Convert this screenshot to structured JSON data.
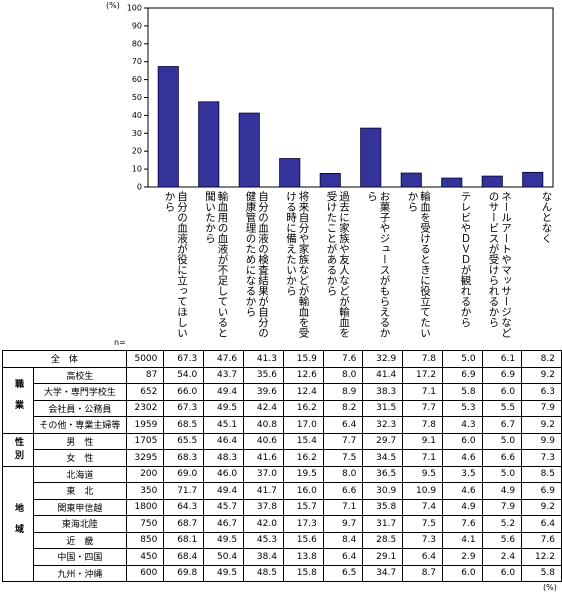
{
  "chart_data": {
    "type": "bar",
    "unit": "(%)",
    "color": "#333399",
    "categories": [
      "自分の血液が役に立ってほしいから",
      "輸血用の血液が不足していると聞いたから",
      "自分の血液の検査結果が自分の健康管理のためになるから",
      "将来自分や家族などが輸血を受ける時に備えたいから",
      "過去に家族や友人などが輸血を受けたことがあるから",
      "お菓子やジュースがもらえるから",
      "輸血を受けるときに役立てたいから",
      "テレビやＤＶＤが観れるから",
      "ネールアートやマッサージなどのサービスが受けられるから",
      "なんとなく"
    ],
    "values": [
      67.3,
      47.6,
      41.3,
      15.9,
      7.6,
      32.9,
      7.8,
      5.0,
      6.1,
      8.2
    ],
    "ylim": [
      0,
      100
    ],
    "yticks": [
      0,
      10,
      20,
      30,
      40,
      50,
      60,
      70,
      80,
      90,
      100
    ]
  },
  "table": {
    "n_label": "n=",
    "unit": "(%)",
    "total": [
      "全　体",
      "5000",
      "67.3",
      "47.6",
      "41.3",
      "15.9",
      "7.6",
      "32.9",
      "7.8",
      "5.0",
      "6.1",
      "8.2"
    ],
    "groups": [
      {
        "label": "職業",
        "rows": [
          [
            "高校生",
            "87",
            "54.0",
            "43.7",
            "35.6",
            "12.6",
            "8.0",
            "41.4",
            "17.2",
            "6.9",
            "6.9",
            "9.2"
          ],
          [
            "大学・専門学校生",
            "652",
            "66.0",
            "49.4",
            "39.6",
            "12.4",
            "8.9",
            "38.3",
            "7.1",
            "5.8",
            "6.0",
            "6.3"
          ],
          [
            "会社員・公務員",
            "2302",
            "67.3",
            "49.5",
            "42.4",
            "16.2",
            "8.2",
            "31.5",
            "7.7",
            "5.3",
            "5.5",
            "7.9"
          ],
          [
            "その他・専業主婦等",
            "1959",
            "68.5",
            "45.1",
            "40.8",
            "17.0",
            "6.4",
            "32.3",
            "7.8",
            "4.3",
            "6.7",
            "9.2"
          ]
        ]
      },
      {
        "label": "性別",
        "rows": [
          [
            "男　性",
            "1705",
            "65.5",
            "46.4",
            "40.6",
            "15.4",
            "7.7",
            "29.7",
            "9.1",
            "6.0",
            "5.0",
            "9.9"
          ],
          [
            "女　性",
            "3295",
            "68.3",
            "48.3",
            "41.6",
            "16.2",
            "7.5",
            "34.5",
            "7.1",
            "4.6",
            "6.6",
            "7.3"
          ]
        ]
      },
      {
        "label": "地域",
        "rows": [
          [
            "北海道",
            "200",
            "69.0",
            "46.0",
            "37.0",
            "19.5",
            "8.0",
            "36.5",
            "9.5",
            "3.5",
            "5.0",
            "8.5"
          ],
          [
            "東　北",
            "350",
            "71.7",
            "49.4",
            "41.7",
            "16.0",
            "6.6",
            "30.9",
            "10.9",
            "4.6",
            "4.9",
            "6.9"
          ],
          [
            "関東甲信越",
            "1800",
            "64.3",
            "45.7",
            "37.8",
            "15.7",
            "7.1",
            "35.8",
            "7.4",
            "4.9",
            "7.9",
            "9.2"
          ],
          [
            "東海北陸",
            "750",
            "68.7",
            "46.7",
            "42.0",
            "17.3",
            "9.7",
            "31.7",
            "7.5",
            "7.6",
            "5.2",
            "6.4"
          ],
          [
            "近　畿",
            "850",
            "68.1",
            "49.5",
            "45.3",
            "15.6",
            "8.4",
            "28.5",
            "7.3",
            "4.1",
            "5.6",
            "7.6"
          ],
          [
            "中国・四国",
            "450",
            "68.4",
            "50.4",
            "38.4",
            "13.8",
            "6.4",
            "29.1",
            "6.4",
            "2.9",
            "2.4",
            "12.2"
          ],
          [
            "九州・沖縄",
            "600",
            "69.8",
            "49.5",
            "48.5",
            "15.8",
            "6.5",
            "34.7",
            "8.7",
            "6.0",
            "6.0",
            "5.8"
          ]
        ]
      }
    ]
  }
}
